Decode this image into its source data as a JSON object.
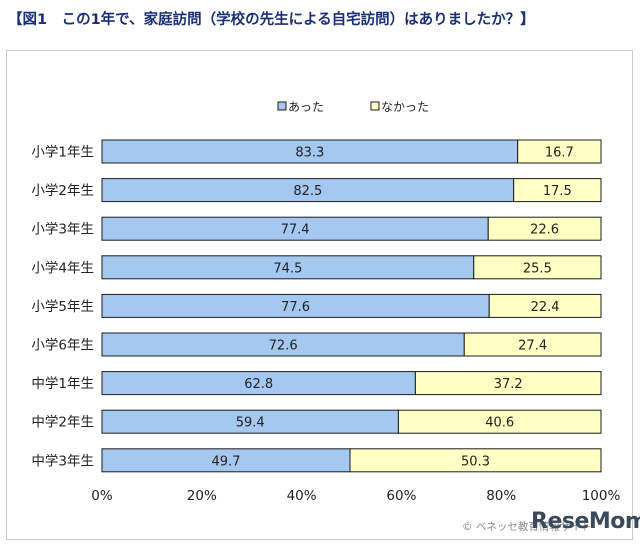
{
  "title": "【図1　この1年で、家庭訪問（学校の先生による自宅訪問）はありましたか？】",
  "colors": {
    "yes": "#a4c8f0",
    "no": "#ffffc4",
    "bar_border": "#1c1c1c",
    "title": "#1a2f7a"
  },
  "chart_data": {
    "type": "bar",
    "orientation": "horizontal",
    "stacked": "100%",
    "title": "【図1　この1年で、家庭訪問（学校の先生による自宅訪問）はありましたか？】",
    "categories": [
      "小学1年生",
      "小学2年生",
      "小学3年生",
      "小学4年生",
      "小学5年生",
      "小学6年生",
      "中学1年生",
      "中学2年生",
      "中学3年生"
    ],
    "series": [
      {
        "name": "あった",
        "values": [
          83.3,
          82.5,
          77.4,
          74.5,
          77.6,
          72.6,
          62.8,
          59.4,
          49.7
        ],
        "color": "#a4c8f0"
      },
      {
        "name": "なかった",
        "values": [
          16.7,
          17.5,
          22.6,
          25.5,
          22.4,
          27.4,
          37.2,
          40.6,
          50.3
        ],
        "color": "#ffffc4"
      }
    ],
    "xlim": [
      0,
      100
    ],
    "xticks": [
      "0%",
      "20%",
      "40%",
      "60%",
      "80%",
      "100%"
    ],
    "legend_position": "top",
    "grid": false,
    "data_labels": true
  },
  "footer": {
    "credit": "© ベネッセ教育情報サイト",
    "logo": "ReseMom"
  }
}
